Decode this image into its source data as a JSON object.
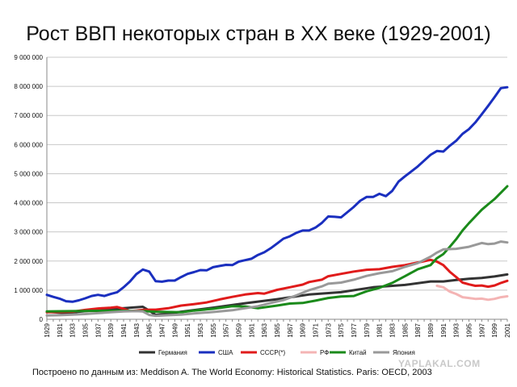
{
  "title": "Рост ВВП некоторых стран в XX веке (1929-2001)",
  "source_note": "Построено по данным из: Meddison A. The World Economy: Historical Statistics. Paris: OECD, 2003",
  "watermark": "YAPLAKAL.COM",
  "chart_data": {
    "type": "line",
    "title": "Рост ВВП некоторых стран в XX веке (1929-2001)",
    "xlabel": "",
    "ylabel": "",
    "xlim": [
      1929,
      2001
    ],
    "ylim": [
      0,
      9000000
    ],
    "grid": true,
    "legend": "bottom",
    "x_tick_labels": [
      "1929",
      "1931",
      "1933",
      "1935",
      "1937",
      "1939",
      "1941",
      "1943",
      "1945",
      "1947",
      "1949",
      "1951",
      "1953",
      "1955",
      "1957",
      "1959",
      "1961",
      "1963",
      "1965",
      "1967",
      "1969",
      "1971",
      "1973",
      "1975",
      "1977",
      "1979",
      "1981",
      "1983",
      "1985",
      "1987",
      "1989",
      "1991",
      "1993",
      "1995",
      "1997",
      "1999",
      "2001"
    ],
    "y_tick_labels": [
      "0",
      "1 000 000",
      "2 000 000",
      "3 000 000",
      "4 000 000",
      "5 000 000",
      "6 000 000",
      "7 000 000",
      "8 000 000",
      "9 000 000"
    ],
    "series": [
      {
        "name": "Германия",
        "color": "#333333",
        "points": [
          [
            1929,
            260000
          ],
          [
            1932,
            210000
          ],
          [
            1934,
            260000
          ],
          [
            1938,
            340000
          ],
          [
            1941,
            380000
          ],
          [
            1944,
            430000
          ],
          [
            1945,
            300000
          ],
          [
            1946,
            150000
          ],
          [
            1948,
            190000
          ],
          [
            1950,
            260000
          ],
          [
            1955,
            400000
          ],
          [
            1960,
            550000
          ],
          [
            1965,
            690000
          ],
          [
            1970,
            850000
          ],
          [
            1975,
            930000
          ],
          [
            1980,
            1100000
          ],
          [
            1985,
            1180000
          ],
          [
            1989,
            1300000
          ],
          [
            1991,
            1300000
          ],
          [
            1993,
            1350000
          ],
          [
            1995,
            1390000
          ],
          [
            1997,
            1420000
          ],
          [
            1999,
            1470000
          ],
          [
            2001,
            1540000
          ]
        ]
      },
      {
        "name": "США",
        "color": "#1a2fbf",
        "points": [
          [
            1929,
            840000
          ],
          [
            1930,
            770000
          ],
          [
            1931,
            710000
          ],
          [
            1932,
            620000
          ],
          [
            1933,
            600000
          ],
          [
            1934,
            650000
          ],
          [
            1935,
            720000
          ],
          [
            1936,
            800000
          ],
          [
            1937,
            840000
          ],
          [
            1938,
            800000
          ],
          [
            1939,
            870000
          ],
          [
            1940,
            930000
          ],
          [
            1941,
            1100000
          ],
          [
            1942,
            1300000
          ],
          [
            1943,
            1550000
          ],
          [
            1944,
            1710000
          ],
          [
            1945,
            1640000
          ],
          [
            1946,
            1310000
          ],
          [
            1947,
            1290000
          ],
          [
            1948,
            1330000
          ],
          [
            1949,
            1330000
          ],
          [
            1950,
            1450000
          ],
          [
            1951,
            1560000
          ],
          [
            1952,
            1620000
          ],
          [
            1953,
            1690000
          ],
          [
            1954,
            1680000
          ],
          [
            1955,
            1790000
          ],
          [
            1956,
            1830000
          ],
          [
            1957,
            1870000
          ],
          [
            1958,
            1860000
          ],
          [
            1959,
            1980000
          ],
          [
            1960,
            2030000
          ],
          [
            1961,
            2080000
          ],
          [
            1962,
            2210000
          ],
          [
            1963,
            2300000
          ],
          [
            1964,
            2440000
          ],
          [
            1965,
            2600000
          ],
          [
            1966,
            2770000
          ],
          [
            1967,
            2850000
          ],
          [
            1968,
            2970000
          ],
          [
            1969,
            3050000
          ],
          [
            1970,
            3050000
          ],
          [
            1971,
            3150000
          ],
          [
            1972,
            3310000
          ],
          [
            1973,
            3530000
          ],
          [
            1974,
            3520000
          ],
          [
            1975,
            3500000
          ],
          [
            1976,
            3680000
          ],
          [
            1977,
            3860000
          ],
          [
            1978,
            4070000
          ],
          [
            1979,
            4200000
          ],
          [
            1980,
            4200000
          ],
          [
            1981,
            4310000
          ],
          [
            1982,
            4230000
          ],
          [
            1983,
            4410000
          ],
          [
            1984,
            4730000
          ],
          [
            1985,
            4910000
          ],
          [
            1986,
            5080000
          ],
          [
            1987,
            5250000
          ],
          [
            1988,
            5450000
          ],
          [
            1989,
            5650000
          ],
          [
            1990,
            5780000
          ],
          [
            1991,
            5760000
          ],
          [
            1992,
            5960000
          ],
          [
            1993,
            6130000
          ],
          [
            1994,
            6370000
          ],
          [
            1995,
            6530000
          ],
          [
            1996,
            6760000
          ],
          [
            1997,
            7040000
          ],
          [
            1998,
            7330000
          ],
          [
            1999,
            7630000
          ],
          [
            2000,
            7940000
          ],
          [
            2001,
            7970000
          ]
        ]
      },
      {
        "name": "СССР(*)",
        "color": "#e01b1b",
        "points": [
          [
            1929,
            240000
          ],
          [
            1931,
            250000
          ],
          [
            1933,
            260000
          ],
          [
            1935,
            320000
          ],
          [
            1937,
            370000
          ],
          [
            1939,
            400000
          ],
          [
            1940,
            420000
          ],
          [
            1941,
            360000
          ],
          [
            1942,
            280000
          ],
          [
            1943,
            300000
          ],
          [
            1944,
            320000
          ],
          [
            1945,
            330000
          ],
          [
            1946,
            330000
          ],
          [
            1948,
            380000
          ],
          [
            1950,
            470000
          ],
          [
            1952,
            520000
          ],
          [
            1954,
            580000
          ],
          [
            1956,
            680000
          ],
          [
            1958,
            770000
          ],
          [
            1960,
            850000
          ],
          [
            1962,
            900000
          ],
          [
            1963,
            880000
          ],
          [
            1965,
            1010000
          ],
          [
            1967,
            1100000
          ],
          [
            1969,
            1190000
          ],
          [
            1970,
            1280000
          ],
          [
            1972,
            1360000
          ],
          [
            1973,
            1480000
          ],
          [
            1975,
            1560000
          ],
          [
            1977,
            1640000
          ],
          [
            1979,
            1700000
          ],
          [
            1981,
            1720000
          ],
          [
            1983,
            1800000
          ],
          [
            1985,
            1860000
          ],
          [
            1987,
            1950000
          ],
          [
            1989,
            2040000
          ],
          [
            1990,
            1980000
          ],
          [
            1991,
            1860000
          ],
          [
            1992,
            1630000
          ],
          [
            1993,
            1450000
          ],
          [
            1994,
            1260000
          ],
          [
            1995,
            1200000
          ],
          [
            1996,
            1150000
          ],
          [
            1997,
            1160000
          ],
          [
            1998,
            1120000
          ],
          [
            1999,
            1160000
          ],
          [
            2000,
            1250000
          ],
          [
            2001,
            1320000
          ]
        ]
      },
      {
        "name": "РФ",
        "color": "#f4b4b4",
        "points": [
          [
            1990,
            1150000
          ],
          [
            1991,
            1100000
          ],
          [
            1992,
            950000
          ],
          [
            1993,
            870000
          ],
          [
            1994,
            760000
          ],
          [
            1995,
            730000
          ],
          [
            1996,
            700000
          ],
          [
            1997,
            710000
          ],
          [
            1998,
            670000
          ],
          [
            1999,
            700000
          ],
          [
            2000,
            760000
          ],
          [
            2001,
            790000
          ]
        ]
      },
      {
        "name": "Китай",
        "color": "#1a8a1a",
        "points": [
          [
            1929,
            270000
          ],
          [
            1933,
            280000
          ],
          [
            1937,
            290000
          ],
          [
            1941,
            290000
          ],
          [
            1944,
            280000
          ],
          [
            1946,
            260000
          ],
          [
            1950,
            240000
          ],
          [
            1952,
            300000
          ],
          [
            1955,
            360000
          ],
          [
            1958,
            450000
          ],
          [
            1960,
            440000
          ],
          [
            1962,
            380000
          ],
          [
            1965,
            470000
          ],
          [
            1967,
            540000
          ],
          [
            1969,
            560000
          ],
          [
            1971,
            640000
          ],
          [
            1973,
            730000
          ],
          [
            1975,
            780000
          ],
          [
            1977,
            800000
          ],
          [
            1979,
            960000
          ],
          [
            1981,
            1080000
          ],
          [
            1983,
            1250000
          ],
          [
            1985,
            1480000
          ],
          [
            1987,
            1720000
          ],
          [
            1989,
            1860000
          ],
          [
            1990,
            2100000
          ],
          [
            1991,
            2240000
          ],
          [
            1992,
            2490000
          ],
          [
            1993,
            2750000
          ],
          [
            1994,
            3050000
          ],
          [
            1995,
            3300000
          ],
          [
            1996,
            3530000
          ],
          [
            1997,
            3760000
          ],
          [
            1998,
            3950000
          ],
          [
            1999,
            4130000
          ],
          [
            2000,
            4350000
          ],
          [
            2001,
            4570000
          ]
        ]
      },
      {
        "name": "Япония",
        "color": "#999999",
        "points": [
          [
            1929,
            130000
          ],
          [
            1931,
            140000
          ],
          [
            1933,
            160000
          ],
          [
            1935,
            180000
          ],
          [
            1937,
            210000
          ],
          [
            1939,
            240000
          ],
          [
            1941,
            270000
          ],
          [
            1943,
            280000
          ],
          [
            1944,
            270000
          ],
          [
            1945,
            150000
          ],
          [
            1946,
            120000
          ],
          [
            1948,
            140000
          ],
          [
            1950,
            160000
          ],
          [
            1952,
            200000
          ],
          [
            1955,
            250000
          ],
          [
            1958,
            310000
          ],
          [
            1960,
            380000
          ],
          [
            1962,
            450000
          ],
          [
            1964,
            560000
          ],
          [
            1966,
            660000
          ],
          [
            1968,
            820000
          ],
          [
            1970,
            1000000
          ],
          [
            1972,
            1130000
          ],
          [
            1973,
            1220000
          ],
          [
            1975,
            1260000
          ],
          [
            1977,
            1360000
          ],
          [
            1979,
            1490000
          ],
          [
            1981,
            1580000
          ],
          [
            1983,
            1650000
          ],
          [
            1985,
            1800000
          ],
          [
            1987,
            1930000
          ],
          [
            1989,
            2150000
          ],
          [
            1990,
            2290000
          ],
          [
            1991,
            2400000
          ],
          [
            1993,
            2420000
          ],
          [
            1995,
            2490000
          ],
          [
            1997,
            2620000
          ],
          [
            1998,
            2580000
          ],
          [
            1999,
            2600000
          ],
          [
            2000,
            2670000
          ],
          [
            2001,
            2640000
          ]
        ]
      }
    ]
  }
}
